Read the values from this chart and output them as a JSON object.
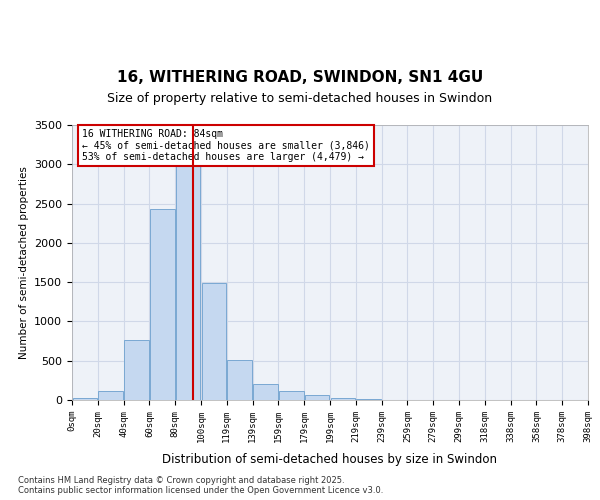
{
  "title_line1": "16, WITHERING ROAD, SWINDON, SN1 4GU",
  "title_line2": "Size of property relative to semi-detached houses in Swindon",
  "xlabel": "Distribution of semi-detached houses by size in Swindon",
  "ylabel": "Number of semi-detached properties",
  "annotation_line1": "16 WITHERING ROAD: 84sqm",
  "annotation_line2": "← 45% of semi-detached houses are smaller (3,846)",
  "annotation_line3": "53% of semi-detached houses are larger (4,479) →",
  "footer_line1": "Contains HM Land Registry data © Crown copyright and database right 2025.",
  "footer_line2": "Contains public sector information licensed under the Open Government Licence v3.0.",
  "bar_color": "#c5d8f0",
  "bar_edge_color": "#7aa8d2",
  "vline_color": "#cc0000",
  "annotation_box_color": "#cc0000",
  "grid_color": "#d0d8e8",
  "background_color": "#eef2f8",
  "bin_labels": [
    "0sqm",
    "20sqm",
    "40sqm",
    "60sqm",
    "80sqm",
    "100sqm",
    "119sqm",
    "139sqm",
    "159sqm",
    "179sqm",
    "199sqm",
    "219sqm",
    "239sqm",
    "259sqm",
    "279sqm",
    "299sqm",
    "318sqm",
    "338sqm",
    "358sqm",
    "378sqm",
    "398sqm"
  ],
  "bar_heights": [
    30,
    110,
    760,
    2430,
    3020,
    1490,
    510,
    210,
    120,
    65,
    20,
    10,
    5,
    2,
    1,
    1,
    1,
    0,
    0,
    0
  ],
  "ylim": [
    0,
    3500
  ],
  "yticks": [
    0,
    500,
    1000,
    1500,
    2000,
    2500,
    3000,
    3500
  ],
  "vline_x": 4.2
}
